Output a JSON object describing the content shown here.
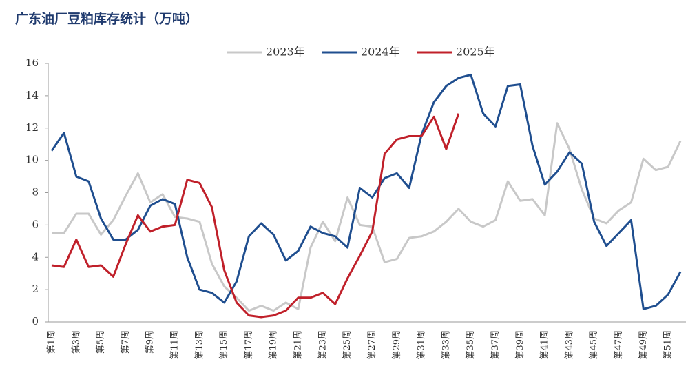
{
  "chart_data": {
    "type": "line",
    "title": "广东油厂豆粕库存统计（万吨）",
    "categories": [
      "第1周",
      null,
      "第3周",
      null,
      "第5周",
      null,
      "第7周",
      null,
      "第9周",
      null,
      "第11周",
      null,
      "第13周",
      null,
      "第15周",
      null,
      "第17周",
      null,
      "第19周",
      null,
      "第21周",
      null,
      "第23周",
      null,
      "第25周",
      null,
      "第27周",
      null,
      "第29周",
      null,
      "第31周",
      null,
      "第33周",
      null,
      "第35周",
      null,
      "第37周",
      null,
      "第39周",
      null,
      "第41周",
      null,
      "第43周",
      null,
      "第45周",
      null,
      "第47周",
      null,
      "第49周",
      null,
      "第51周",
      null
    ],
    "series": [
      {
        "name": "2023年",
        "color": "#c8c8c8",
        "values": [
          5.5,
          5.5,
          6.7,
          6.7,
          5.4,
          6.3,
          7.8,
          9.2,
          7.4,
          7.9,
          6.5,
          6.4,
          6.2,
          3.6,
          2.2,
          1.5,
          0.7,
          1.0,
          0.7,
          1.2,
          0.8,
          4.6,
          6.2,
          5.0,
          7.7,
          6.0,
          5.9,
          3.7,
          3.9,
          5.2,
          5.3,
          5.6,
          6.2,
          7.0,
          6.2,
          5.9,
          6.3,
          8.7,
          7.5,
          7.6,
          6.6,
          12.3,
          10.7,
          8.2,
          6.4,
          6.1,
          6.9,
          7.4,
          10.1,
          9.4,
          9.6,
          11.2
        ]
      },
      {
        "name": "2024年",
        "color": "#1f4e8f",
        "values": [
          10.6,
          11.7,
          9.0,
          8.7,
          6.4,
          5.1,
          5.1,
          5.7,
          7.2,
          7.6,
          7.3,
          4.0,
          2.0,
          1.8,
          1.2,
          2.5,
          5.3,
          6.1,
          5.4,
          3.8,
          4.4,
          5.9,
          5.5,
          5.3,
          4.6,
          8.3,
          7.7,
          8.9,
          9.2,
          8.3,
          11.6,
          13.6,
          14.6,
          15.1,
          15.3,
          12.9,
          12.1,
          14.6,
          14.7,
          10.9,
          8.5,
          9.3,
          10.5,
          9.8,
          6.2,
          4.7,
          5.5,
          6.3,
          0.8,
          1.0,
          1.7,
          3.1
        ]
      },
      {
        "name": "2025年",
        "color": "#c0202a",
        "values": [
          3.5,
          3.4,
          5.1,
          3.4,
          3.5,
          2.8,
          4.8,
          6.6,
          5.6,
          5.9,
          6.0,
          8.8,
          8.6,
          7.1,
          3.2,
          1.2,
          0.4,
          0.3,
          0.4,
          0.7,
          1.5,
          1.5,
          1.8,
          1.1,
          2.7,
          4.1,
          5.6,
          10.4,
          11.3,
          11.5,
          11.5,
          12.7,
          10.7,
          12.9,
          null,
          null,
          null,
          null,
          null,
          null,
          null,
          null,
          null,
          null,
          null,
          null,
          null,
          null,
          null,
          null,
          null,
          null
        ]
      }
    ],
    "ylim": [
      0,
      16
    ],
    "yticks": [
      0,
      2,
      4,
      6,
      8,
      10,
      12,
      14,
      16
    ],
    "legend": "top"
  }
}
